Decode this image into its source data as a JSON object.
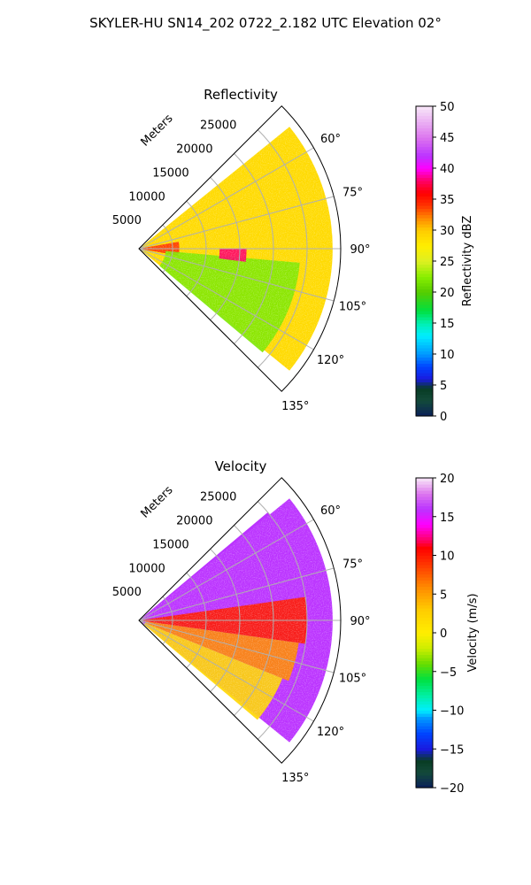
{
  "suptitle": "SKYLER-HU  SN14_202  0722_2.182 UTC Elevation 02°",
  "chart_data": [
    {
      "type": "heatmap",
      "projection": "polar sector",
      "title": "Reflectivity",
      "radial_label": "Meters",
      "radial_ticks": [
        5000,
        10000,
        15000,
        20000,
        25000
      ],
      "radial_tick_labels": [
        "5000",
        "10000",
        "15000",
        "20000",
        "25000"
      ],
      "rlim": [
        0,
        30000
      ],
      "theta_range_deg": [
        45,
        135
      ],
      "theta_ticks_deg": [
        60,
        75,
        90,
        105,
        120,
        135
      ],
      "theta_tick_labels": [
        "60°",
        "75°",
        "90°",
        "105°",
        "120°",
        "135°"
      ],
      "grid": true,
      "colorbar": {
        "label": "Reflectivity dBZ",
        "range": [
          0,
          50
        ],
        "ticks": [
          0,
          5,
          10,
          15,
          20,
          25,
          30,
          35,
          40,
          45,
          50
        ],
        "tick_labels": [
          "0",
          "5",
          "10",
          "15",
          "20",
          "25",
          "30",
          "35",
          "40",
          "45",
          "50"
        ]
      },
      "color_stops": [
        {
          "v": 0,
          "c": "#0a1f5a"
        },
        {
          "v": 2.5,
          "c": "#134a3a"
        },
        {
          "v": 4.5,
          "c": "#083c24"
        },
        {
          "v": 6,
          "c": "#1a1adf"
        },
        {
          "v": 8,
          "c": "#0044ff"
        },
        {
          "v": 10,
          "c": "#0099ff"
        },
        {
          "v": 13,
          "c": "#00eeff"
        },
        {
          "v": 15,
          "c": "#00f0b0"
        },
        {
          "v": 17,
          "c": "#00e040"
        },
        {
          "v": 20,
          "c": "#55cc00"
        },
        {
          "v": 22.5,
          "c": "#88ee00"
        },
        {
          "v": 25,
          "c": "#ddf022"
        },
        {
          "v": 27.5,
          "c": "#ffee00"
        },
        {
          "v": 30,
          "c": "#ffcc00"
        },
        {
          "v": 32,
          "c": "#ff8800"
        },
        {
          "v": 34,
          "c": "#ff3300"
        },
        {
          "v": 36,
          "c": "#ff0000"
        },
        {
          "v": 38,
          "c": "#ff0066"
        },
        {
          "v": 40,
          "c": "#ff00ff"
        },
        {
          "v": 42,
          "c": "#bb33ff"
        },
        {
          "v": 45,
          "c": "#dd77ee"
        },
        {
          "v": 50,
          "c": "#f8e8f8"
        }
      ],
      "field_regions": [
        {
          "theta": [
            54,
            80
          ],
          "r": [
            2000,
            25000
          ],
          "value": 29,
          "note": "yellow-orange mid band"
        },
        {
          "theta": [
            80,
            100
          ],
          "r": [
            500,
            6000
          ],
          "value": 34,
          "note": "red core near radar"
        },
        {
          "theta": [
            95,
            130
          ],
          "r": [
            4000,
            24000
          ],
          "value": 22,
          "note": "green lower sector"
        },
        {
          "theta": [
            90,
            97
          ],
          "r": [
            12000,
            16000
          ],
          "value": 38,
          "note": "magenta cell"
        }
      ]
    },
    {
      "type": "heatmap",
      "projection": "polar sector",
      "title": "Velocity",
      "radial_label": "Meters",
      "radial_ticks": [
        5000,
        10000,
        15000,
        20000,
        25000
      ],
      "radial_tick_labels": [
        "5000",
        "10000",
        "15000",
        "20000",
        "25000"
      ],
      "rlim": [
        0,
        30000
      ],
      "theta_range_deg": [
        45,
        135
      ],
      "theta_ticks_deg": [
        60,
        75,
        90,
        105,
        120,
        135
      ],
      "theta_tick_labels": [
        "60°",
        "75°",
        "90°",
        "105°",
        "120°",
        "135°"
      ],
      "grid": true,
      "colorbar": {
        "label": "Velocity (m/s)",
        "range": [
          -20,
          20
        ],
        "ticks": [
          -20,
          -15,
          -10,
          -5,
          0,
          5,
          10,
          15,
          20
        ],
        "tick_labels": [
          "−20",
          "−15",
          "−10",
          "−5",
          "0",
          "5",
          "10",
          "15",
          "20"
        ]
      },
      "color_stops": [
        {
          "v": -20,
          "c": "#0a1f5a"
        },
        {
          "v": -18,
          "c": "#134a3a"
        },
        {
          "v": -16.5,
          "c": "#083c24"
        },
        {
          "v": -15,
          "c": "#1a1adf"
        },
        {
          "v": -13,
          "c": "#0044ff"
        },
        {
          "v": -11,
          "c": "#0099ff"
        },
        {
          "v": -10,
          "c": "#00eeff"
        },
        {
          "v": -8,
          "c": "#00f0a0"
        },
        {
          "v": -6,
          "c": "#00e040"
        },
        {
          "v": -4,
          "c": "#66dd00"
        },
        {
          "v": -2,
          "c": "#ccee00"
        },
        {
          "v": 0,
          "c": "#ffee00"
        },
        {
          "v": 3,
          "c": "#ffcc00"
        },
        {
          "v": 6,
          "c": "#ff8800"
        },
        {
          "v": 9,
          "c": "#ff3300"
        },
        {
          "v": 11,
          "c": "#ff0000"
        },
        {
          "v": 12,
          "c": "#ff0066"
        },
        {
          "v": 14,
          "c": "#ff00ff"
        },
        {
          "v": 16,
          "c": "#bb33ff"
        },
        {
          "v": 18,
          "c": "#dd77ee"
        },
        {
          "v": 20,
          "c": "#f8e8f8"
        }
      ],
      "field_regions": [
        {
          "theta": [
            50,
            82
          ],
          "r": [
            1000,
            25000
          ],
          "value": 16,
          "note": "purple / magenta inbound band"
        },
        {
          "theta": [
            82,
            98
          ],
          "r": [
            500,
            25000
          ],
          "value": 10,
          "note": "red band along 90°"
        },
        {
          "theta": [
            98,
            112
          ],
          "r": [
            1000,
            24000
          ],
          "value": 6,
          "note": "orange band"
        },
        {
          "theta": [
            112,
            130
          ],
          "r": [
            1000,
            23000
          ],
          "value": 2,
          "note": "yellow lower sector"
        }
      ]
    }
  ]
}
